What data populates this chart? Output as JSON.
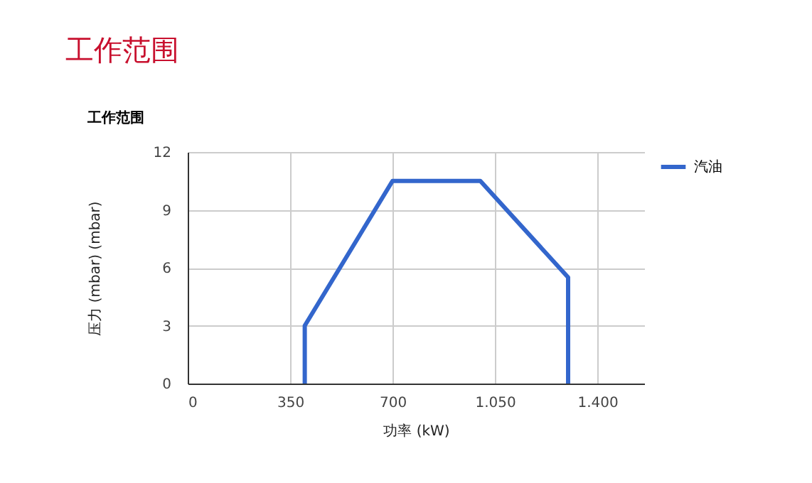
{
  "chart_data": {
    "type": "line",
    "title": "工作范围",
    "subtitle": "工作范围",
    "xlabel": "功率 (kW)",
    "ylabel": "压力 (mbar) (mbar)",
    "x": [
      400,
      400,
      700,
      1000,
      1300,
      1300
    ],
    "series": [
      {
        "name": "汽油",
        "color": "#3366cc",
        "values": [
          0,
          3,
          10.5,
          10.5,
          5.5,
          0
        ]
      }
    ],
    "xlim": [
      0,
      1560
    ],
    "xticks": [
      0,
      350,
      700,
      {
        "value": 1050,
        "label": "1.050"
      },
      {
        "value": 1400,
        "label": "1.400"
      }
    ],
    "ylim": [
      0,
      12
    ],
    "yticks": [
      0,
      3,
      6,
      9,
      12
    ],
    "grid": true,
    "legend": "right",
    "marker": "none",
    "line_style": "solid"
  }
}
